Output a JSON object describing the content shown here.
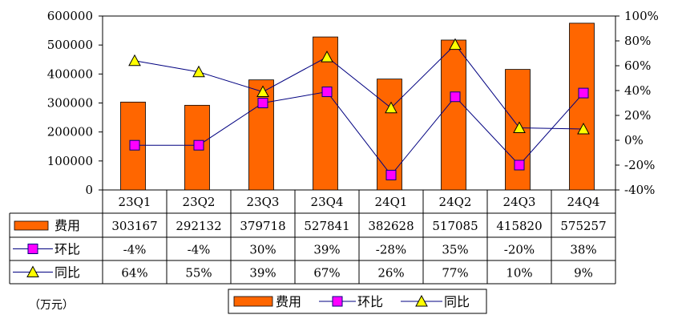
{
  "chart_data": {
    "type": "bar",
    "categories": [
      "23Q1",
      "23Q2",
      "23Q3",
      "23Q4",
      "24Q1",
      "24Q2",
      "24Q3",
      "24Q4"
    ],
    "series": [
      {
        "name": "费用",
        "kind": "bar",
        "axis": "left",
        "color": "#FF6600",
        "values": [
          303167,
          292132,
          379718,
          527841,
          382628,
          517085,
          415820,
          575257
        ]
      },
      {
        "name": "环比",
        "kind": "line",
        "axis": "right",
        "color": "#FF00FF",
        "values": [
          -4,
          -4,
          30,
          39,
          -28,
          35,
          -20,
          38
        ],
        "labels": [
          "-4%",
          "-4%",
          "30%",
          "39%",
          "-28%",
          "35%",
          "-20%",
          "38%"
        ]
      },
      {
        "name": "同比",
        "kind": "line",
        "axis": "right",
        "color": "#FFFF00",
        "values": [
          64,
          55,
          39,
          67,
          26,
          77,
          10,
          9
        ],
        "labels": [
          "64%",
          "55%",
          "39%",
          "67%",
          "26%",
          "77%",
          "10%",
          "9%"
        ]
      }
    ],
    "y_left": {
      "min": 0,
      "max": 600000,
      "step": 100000,
      "ticks": [
        "0",
        "100000",
        "200000",
        "300000",
        "400000",
        "500000",
        "600000"
      ]
    },
    "y_right": {
      "min": -40,
      "max": 100,
      "step": 20,
      "ticks": [
        "-40%",
        "-20%",
        "0%",
        "20%",
        "40%",
        "60%",
        "80%",
        "100%"
      ]
    },
    "legend": [
      "费用",
      "环比",
      "同比"
    ],
    "unit_note": "（万元）",
    "line_color": "#000080",
    "grid": false
  }
}
